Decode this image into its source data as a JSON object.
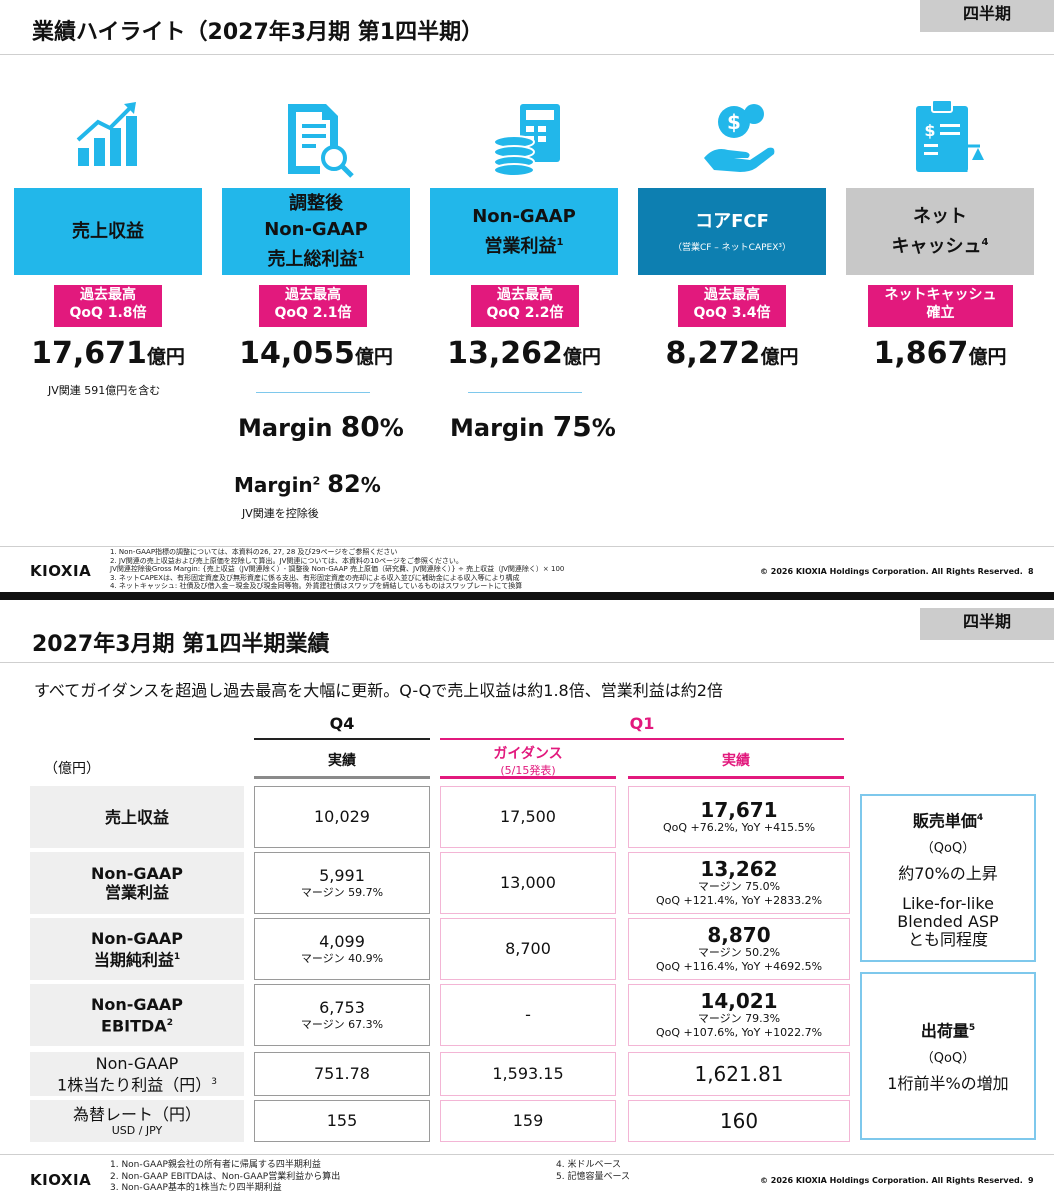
{
  "slide1": {
    "title": "業績ハイライト（2027年3月期 第1四半期）",
    "tag": "四半期",
    "metrics": [
      {
        "label_lines": [
          "売上収益"
        ],
        "sup": "",
        "note_sub": "",
        "badge_lines": [
          "過去最高",
          "QoQ 1.8倍"
        ],
        "value": "17,671",
        "unit": "億円",
        "note": "JV関連 591億円を含む",
        "icon": "growth-chart-icon"
      },
      {
        "label_lines": [
          "調整後",
          "Non-GAAP",
          "売上総利益"
        ],
        "sup": "1",
        "note_sub": "",
        "badge_lines": [
          "過去最高",
          "QoQ 2.1倍"
        ],
        "value": "14,055",
        "unit": "億円",
        "note": "",
        "icon": "document-magnifier-icon"
      },
      {
        "label_lines": [
          "Non-GAAP",
          "営業利益"
        ],
        "sup": "1",
        "note_sub": "",
        "badge_lines": [
          "過去最高",
          "QoQ 2.2倍"
        ],
        "value": "13,262",
        "unit": "億円",
        "note": "",
        "icon": "coins-calculator-icon"
      },
      {
        "label_lines": [
          "コアFCF"
        ],
        "sup": "",
        "note_sub": "（営業CF – ネットCAPEX³）",
        "badge_lines": [
          "過去最高",
          "QoQ 3.4倍"
        ],
        "value": "8,272",
        "unit": "億円",
        "note": "",
        "icon": "hand-coin-icon"
      },
      {
        "label_lines": [
          "ネット",
          "キャッシュ"
        ],
        "sup": "4",
        "note_sub": "",
        "badge_lines": [
          "ネットキャッシュ",
          "確立"
        ],
        "value": "1,867",
        "unit": "億円",
        "note": "",
        "icon": "clipboard-scale-icon"
      }
    ],
    "margins": {
      "gross": {
        "label": "Margin",
        "value": "80",
        "pct": "%"
      },
      "operating": {
        "label": "Margin",
        "value": "75",
        "pct": "%"
      },
      "gross_ex_jv": {
        "label": "Margin",
        "sup": "2",
        "value": "82",
        "pct": "%",
        "note": "JV関連を控除後"
      }
    },
    "footnotes": [
      "1. Non-GAAP指標の調整については、本資料の26, 27, 28 及び29ページをご参照ください",
      "2. JV関連の売上収益および売上原価を控除して算出。JV関連については、本資料の10ページをご参照ください。",
      "    JV関連控除後Gross Margin: {売上収益（JV関連除く）- 調整後 Non-GAAP 売上原価（研究費、JV関連除く）} ÷ 売上収益（JV関連除く）× 100",
      "3. ネットCAPEXは、有形固定資産及び無形資産に係る支出、有形固定資産の売却による収入並びに補助金による収入等により構成",
      "4. ネットキャッシュ: 社債及び借入金－現金及び現金同等物。外貨建社債はスワップを締結しているものはスワップレートにて換算"
    ],
    "logo": "KIOXIA",
    "copyright": "© 2026 KIOXIA Holdings Corporation. All Rights Reserved.",
    "page": "8"
  },
  "slide2": {
    "title": "2027年3月期 第1四半期業績",
    "tag": "四半期",
    "subtitle": "すべてガイダンスを超過し過去最高を大幅に更新。Q-Qで売上収益は約1.8倍、営業利益は約2倍",
    "unit_label": "（億円）",
    "columns": {
      "q4": "Q4",
      "q4_actual": "実績",
      "q1": "Q1",
      "guidance": "ガイダンス",
      "guidance_date": "(5/15発表)",
      "q1_actual": "実績"
    },
    "rows": [
      {
        "label_lines": [
          "売上収益"
        ],
        "sup": "",
        "label_sub": "",
        "bold": true,
        "q4": "10,029",
        "q4_sub": "",
        "guidance": "17,500",
        "q1": "17,671",
        "q1_sub": [
          "QoQ +76.2%, YoY +415.5%"
        ]
      },
      {
        "label_lines": [
          "Non-GAAP",
          "営業利益"
        ],
        "sup": "",
        "label_sub": "",
        "bold": true,
        "q4": "5,991",
        "q4_sub": "マージン 59.7%",
        "guidance": "13,000",
        "q1": "13,262",
        "q1_sub": [
          "マージン 75.0%",
          "QoQ +121.4%, YoY +2833.2%"
        ]
      },
      {
        "label_lines": [
          "Non-GAAP",
          "当期純利益"
        ],
        "sup": "1",
        "label_sub": "",
        "bold": true,
        "q4": "4,099",
        "q4_sub": "マージン 40.9%",
        "guidance": "8,700",
        "q1": "8,870",
        "q1_sub": [
          "マージン 50.2%",
          "QoQ +116.4%, YoY +4692.5%"
        ]
      },
      {
        "label_lines": [
          "Non-GAAP",
          "EBITDA"
        ],
        "sup": "2",
        "label_sub": "",
        "bold": true,
        "q4": "6,753",
        "q4_sub": "マージン 67.3%",
        "guidance": "-",
        "q1": "14,021",
        "q1_sub": [
          "マージン 79.3%",
          "QoQ +107.6%, YoY +1022.7%"
        ]
      },
      {
        "label_lines": [
          "Non-GAAP",
          "1株当たり利益（円）"
        ],
        "sup": "3",
        "label_sub": "",
        "bold": false,
        "q4": "751.78",
        "q4_sub": "",
        "guidance": "1,593.15",
        "q1": "1,621.81",
        "q1_sub": []
      },
      {
        "label_lines": [
          "為替レート（円）"
        ],
        "sup": "",
        "label_sub": "USD / JPY",
        "bold": false,
        "q4": "155",
        "q4_sub": "",
        "guidance": "159",
        "q1": "160",
        "q1_sub": []
      }
    ],
    "side_boxes": [
      {
        "heading": "販売単価",
        "sup": "4",
        "qoq": "（QoQ）",
        "lines": [
          "約70%の上昇",
          "Like-for-like",
          "Blended ASP",
          "とも同程度"
        ]
      },
      {
        "heading": "出荷量",
        "sup": "5",
        "qoq": "（QoQ）",
        "lines": [
          "1桁前半%の増加"
        ]
      }
    ],
    "footnotes_left": [
      "1. Non-GAAP親会社の所有者に帰属する四半期利益",
      "2. Non-GAAP EBITDAは、Non-GAAP営業利益から算出",
      "3. Non-GAAP基本的1株当たり四半期利益"
    ],
    "footnotes_right": [
      "4. 米ドルベース",
      "5. 記憶容量ベース"
    ],
    "logo": "KIOXIA",
    "copyright": "© 2026 KIOXIA Holdings Corporation. All Rights Reserved.",
    "page": "9"
  },
  "colors": {
    "cyan": "#22b7ea",
    "blue": "#0d7fb1",
    "magenta": "#e2197d",
    "grey": "#c8c8c8"
  }
}
